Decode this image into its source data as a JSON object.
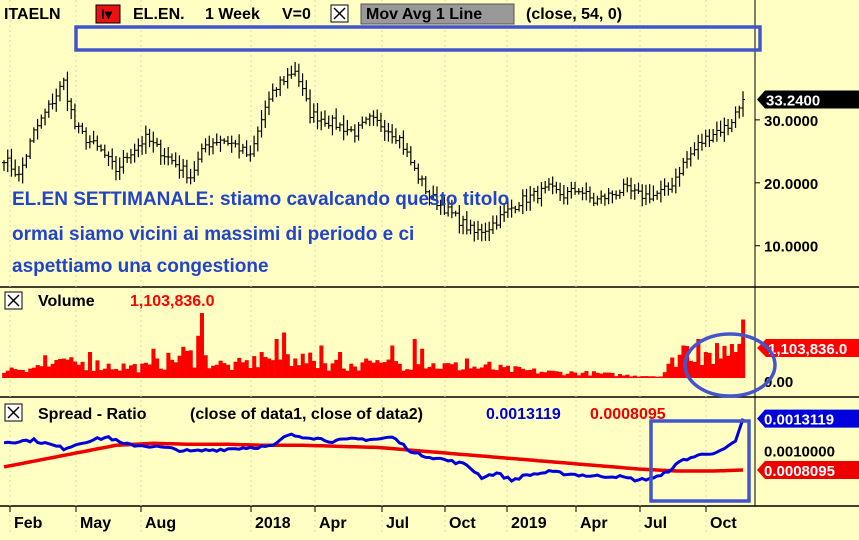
{
  "header": {
    "symbol": "ITAELN",
    "period_btn": "I▾",
    "name": "EL.EN.",
    "interval": "1 Week",
    "vol_label": "V=0",
    "study_label": "Mov Avg 1 Line",
    "study_params": "(close,  54,  0)"
  },
  "annotation": {
    "lines": [
      "EL.EN SETTIMANALE: stiamo cavalcando questo titolo",
      "ormai siamo vicini ai massimi di periodo e ci",
      "aspettiamo una congestione"
    ]
  },
  "colors": {
    "background": "#ffffc4",
    "price_bars": "#000000",
    "volume": "#ff0000",
    "spread_line": "#0000dd",
    "ratio_line": "#ee0000",
    "annotation_text": "#2244cc",
    "highlight_box": "#4455cc"
  },
  "chart_data": [
    {
      "panel": "price",
      "type": "ohlc",
      "y_ticks": [
        "10.0000",
        "20.0000",
        "30.0000"
      ],
      "y_tick_values": [
        10,
        20,
        30
      ],
      "ylim": [
        3.6,
        44.6
      ],
      "last_value_label": "33.2400",
      "last_value": 33.24,
      "x_labels": [
        "Feb",
        "May",
        "Aug",
        "2018",
        "Apr",
        "Jul",
        "Oct",
        "2019",
        "Apr",
        "Jul",
        "Oct"
      ],
      "close_anchors": [
        [
          0,
          24
        ],
        [
          4,
          21
        ],
        [
          8,
          28
        ],
        [
          12,
          32
        ],
        [
          16,
          36
        ],
        [
          19,
          29
        ],
        [
          22,
          27
        ],
        [
          26,
          25
        ],
        [
          30,
          22
        ],
        [
          34,
          25
        ],
        [
          38,
          27
        ],
        [
          42,
          25
        ],
        [
          46,
          23
        ],
        [
          50,
          21
        ],
        [
          54,
          26
        ],
        [
          58,
          27
        ],
        [
          62,
          26
        ],
        [
          66,
          24
        ],
        [
          70,
          32
        ],
        [
          74,
          36
        ],
        [
          78,
          38
        ],
        [
          82,
          31
        ],
        [
          86,
          30
        ],
        [
          90,
          29
        ],
        [
          94,
          28
        ],
        [
          98,
          30
        ],
        [
          102,
          29
        ],
        [
          106,
          27
        ],
        [
          110,
          22
        ],
        [
          114,
          18
        ],
        [
          118,
          16
        ],
        [
          122,
          14
        ],
        [
          126,
          12
        ],
        [
          130,
          13
        ],
        [
          134,
          15
        ],
        [
          138,
          17
        ],
        [
          142,
          18
        ],
        [
          146,
          19
        ],
        [
          150,
          18
        ],
        [
          154,
          19
        ],
        [
          158,
          17
        ],
        [
          162,
          18
        ],
        [
          166,
          19
        ],
        [
          170,
          18
        ],
        [
          174,
          18
        ],
        [
          178,
          19
        ],
        [
          182,
          23
        ],
        [
          186,
          26
        ],
        [
          190,
          28
        ],
        [
          194,
          29
        ],
        [
          198,
          33
        ]
      ]
    },
    {
      "panel": "volume",
      "type": "bar",
      "title": "Volume",
      "title_value": "1,103,836.0",
      "y_tick": "0.00",
      "ylim": [
        0,
        12
      ],
      "last_value_label": "1,103,836.0",
      "volume_anchors": [
        [
          0,
          1.5
        ],
        [
          10,
          2
        ],
        [
          20,
          2.5
        ],
        [
          30,
          2
        ],
        [
          40,
          1.8
        ],
        [
          48,
          4
        ],
        [
          60,
          2
        ],
        [
          70,
          3
        ],
        [
          76,
          3.5
        ],
        [
          86,
          2.5
        ],
        [
          96,
          2
        ],
        [
          106,
          2.5
        ],
        [
          120,
          2
        ],
        [
          134,
          1.5
        ],
        [
          146,
          1
        ],
        [
          158,
          0.8
        ],
        [
          166,
          0.5
        ],
        [
          176,
          0.3
        ],
        [
          182,
          5
        ],
        [
          190,
          3.5
        ],
        [
          198,
          8
        ]
      ],
      "spikes": [
        [
          11,
          3.5
        ],
        [
          16,
          3
        ],
        [
          23,
          4
        ],
        [
          40,
          4.5
        ],
        [
          41,
          3
        ],
        [
          52,
          6.5
        ],
        [
          53,
          10
        ],
        [
          54,
          3.5
        ],
        [
          62,
          2.5
        ],
        [
          69,
          4
        ],
        [
          71,
          3
        ],
        [
          73,
          6
        ],
        [
          75,
          7
        ],
        [
          78,
          3
        ],
        [
          85,
          5
        ],
        [
          90,
          4
        ],
        [
          97,
          3
        ],
        [
          104,
          5
        ],
        [
          110,
          6
        ],
        [
          112,
          4.5
        ],
        [
          124,
          3
        ],
        [
          130,
          2.5
        ],
        [
          182,
          5
        ],
        [
          186,
          6
        ],
        [
          188,
          4
        ],
        [
          192,
          3
        ],
        [
          196,
          4
        ],
        [
          198,
          9
        ]
      ]
    },
    {
      "panel": "spread",
      "type": "line",
      "title": "Spread - Ratio",
      "params": "(close of data1,  close of data2)",
      "title_value_1": "0.0013119",
      "title_value_2": "0.0008095",
      "y_tick": "0.0010000",
      "y_tick_value": 0.001,
      "ylim": [
        0.00047,
        0.00151
      ],
      "last_value_label_1": "0.0013119",
      "last_value_label_2": "0.0008095",
      "series": [
        {
          "name": "close of data1",
          "anchors": [
            [
              0,
              0.00108
            ],
            [
              8,
              0.0011
            ],
            [
              16,
              0.00102
            ],
            [
              22,
              0.00109
            ],
            [
              28,
              0.00113
            ],
            [
              32,
              0.00106
            ],
            [
              40,
              0.00104
            ],
            [
              50,
              0.00099
            ],
            [
              58,
              0.00101
            ],
            [
              66,
              0.00103
            ],
            [
              72,
              0.00104
            ],
            [
              76,
              0.00115
            ],
            [
              82,
              0.00113
            ],
            [
              88,
              0.00109
            ],
            [
              94,
              0.00111
            ],
            [
              100,
              0.00111
            ],
            [
              104,
              0.00113
            ],
            [
              110,
              0.00097
            ],
            [
              118,
              0.00091
            ],
            [
              124,
              0.00086
            ],
            [
              128,
              0.00074
            ],
            [
              132,
              0.00078
            ],
            [
              136,
              0.00071
            ],
            [
              140,
              0.00076
            ],
            [
              146,
              0.00079
            ],
            [
              152,
              0.00077
            ],
            [
              158,
              0.00075
            ],
            [
              164,
              0.00075
            ],
            [
              170,
              0.00071
            ],
            [
              176,
              0.00075
            ],
            [
              182,
              0.00091
            ],
            [
              188,
              0.00097
            ],
            [
              192,
              0.00099
            ],
            [
              196,
              0.00108
            ],
            [
              198,
              0.00131
            ]
          ]
        },
        {
          "name": "close of data2",
          "anchors": [
            [
              0,
              0.00084
            ],
            [
              10,
              0.00091
            ],
            [
              20,
              0.00098
            ],
            [
              30,
              0.00105
            ],
            [
              40,
              0.00107
            ],
            [
              50,
              0.00106
            ],
            [
              60,
              0.00106
            ],
            [
              70,
              0.00105
            ],
            [
              80,
              0.00105
            ],
            [
              90,
              0.00104
            ],
            [
              100,
              0.00103
            ],
            [
              110,
              0.001
            ],
            [
              120,
              0.00097
            ],
            [
              130,
              0.00094
            ],
            [
              140,
              0.00091
            ],
            [
              150,
              0.00088
            ],
            [
              160,
              0.00085
            ],
            [
              170,
              0.00082
            ],
            [
              180,
              0.0008
            ],
            [
              190,
              0.0008
            ],
            [
              198,
              0.00081
            ]
          ]
        }
      ]
    }
  ]
}
